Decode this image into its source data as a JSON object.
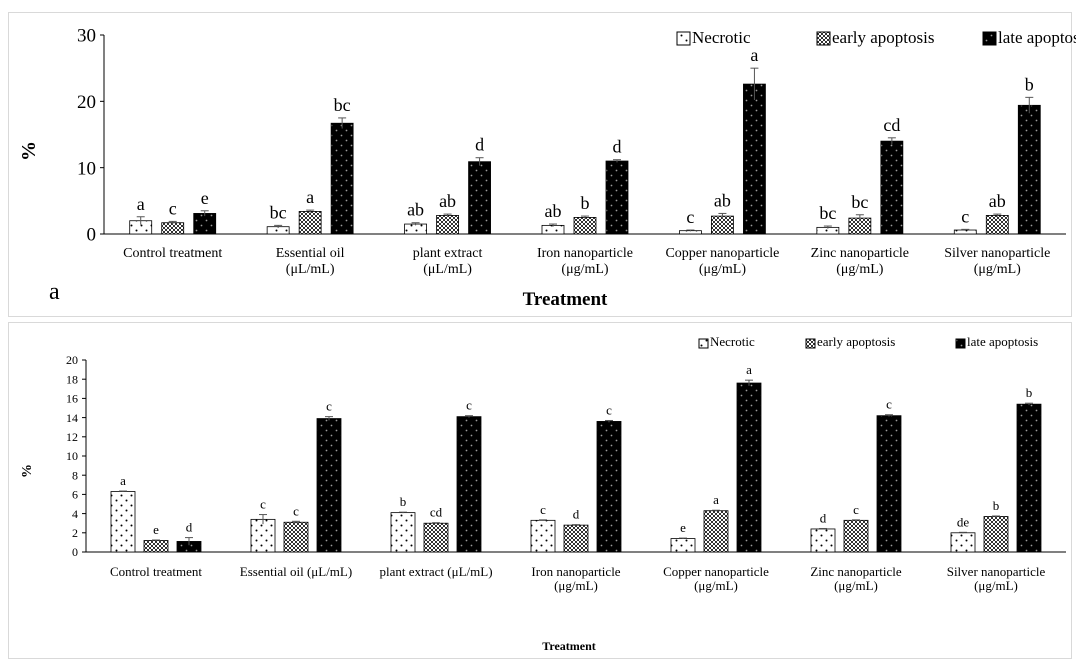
{
  "chart_data": [
    {
      "type": "bar",
      "panel_label": "a",
      "ylabel": "%",
      "xlabel": "Treatment",
      "ylim": [
        0,
        30
      ],
      "yticks": [
        0,
        10,
        20,
        30
      ],
      "grid": false,
      "legend_position": "top-right",
      "categories": [
        [
          "Control treatment"
        ],
        [
          "Essential oil",
          "(μL/mL)"
        ],
        [
          "plant extract",
          "(μL/mL)"
        ],
        [
          "Iron nanoparticle",
          "(μg/mL)"
        ],
        [
          "Copper nanoparticle",
          "(μg/mL)"
        ],
        [
          "Zinc nanoparticle",
          "(μg/mL)"
        ],
        [
          "Silver nanoparticle",
          "(μg/mL)"
        ]
      ],
      "series": [
        {
          "name": "Necrotic",
          "pattern": "dots-white",
          "values": [
            2.0,
            1.1,
            1.5,
            1.3,
            0.5,
            1.0,
            0.6
          ],
          "errors": [
            0.6,
            0.2,
            0.2,
            0.2,
            0.1,
            0.2,
            0.1
          ],
          "letters": [
            "a",
            "bc",
            "ab",
            "ab",
            "c",
            "bc",
            "c"
          ]
        },
        {
          "name": "early apoptosis",
          "pattern": "checker",
          "values": [
            1.7,
            3.4,
            2.8,
            2.5,
            2.7,
            2.4,
            2.8
          ],
          "errors": [
            0.2,
            0.2,
            0.2,
            0.2,
            0.4,
            0.5,
            0.2
          ],
          "letters": [
            "c",
            "a",
            "ab",
            "b",
            "ab",
            "bc",
            "ab"
          ]
        },
        {
          "name": "late apoptosis",
          "pattern": "dots-black",
          "values": [
            3.1,
            16.7,
            10.9,
            11.0,
            22.6,
            14.0,
            19.4
          ],
          "errors": [
            0.4,
            0.8,
            0.6,
            0.2,
            2.4,
            0.5,
            1.2
          ],
          "letters": [
            "e",
            "bc",
            "d",
            "d",
            "a",
            "cd",
            "b"
          ]
        }
      ]
    },
    {
      "type": "bar",
      "ylabel": "%",
      "xlabel": "Treatment",
      "ylim": [
        0,
        20
      ],
      "yticks": [
        0,
        2,
        4,
        6,
        8,
        10,
        12,
        14,
        16,
        18,
        20
      ],
      "grid": false,
      "legend_position": "top-right",
      "categories": [
        [
          "Control treatment"
        ],
        [
          "Essential oil (μL/mL)"
        ],
        [
          "plant extract  (μL/mL)"
        ],
        [
          "Iron nanoparticle",
          "(μg/mL)"
        ],
        [
          "Copper nanoparticle",
          "(μg/mL)"
        ],
        [
          "Zinc nanoparticle",
          "(μg/mL)"
        ],
        [
          "Silver nanoparticle",
          "(μg/mL)"
        ]
      ],
      "series": [
        {
          "name": "Necrotic",
          "pattern": "dots-white",
          "values": [
            6.3,
            3.4,
            4.1,
            3.3,
            1.4,
            2.4,
            2.0
          ],
          "errors": [
            0.05,
            0.5,
            0.05,
            0.05,
            0.05,
            0.05,
            0.05
          ],
          "letters": [
            "a",
            "c",
            "b",
            "c",
            "e",
            "d",
            "de"
          ]
        },
        {
          "name": "early apoptosis",
          "pattern": "checker",
          "values": [
            1.2,
            3.1,
            3.0,
            2.8,
            4.3,
            3.3,
            3.7
          ],
          "errors": [
            0.05,
            0.1,
            0.05,
            0.05,
            0.05,
            0.05,
            0.05
          ],
          "letters": [
            "e",
            "c",
            "cd",
            "d",
            "a",
            "c",
            "b"
          ]
        },
        {
          "name": "late apoptosis",
          "pattern": "dots-black",
          "values": [
            1.1,
            13.9,
            14.1,
            13.6,
            17.6,
            14.2,
            15.4
          ],
          "errors": [
            0.4,
            0.2,
            0.1,
            0.1,
            0.3,
            0.1,
            0.1
          ],
          "letters": [
            "d",
            "c",
            "c",
            "c",
            "a",
            "c",
            "b"
          ]
        }
      ]
    }
  ]
}
